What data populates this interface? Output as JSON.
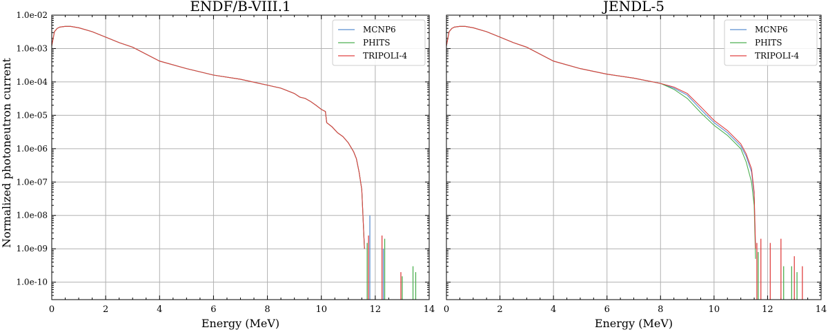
{
  "chart_data": [
    {
      "type": "line",
      "title": "ENDF/B-VIII.1",
      "xlabel": "Energy (MeV)",
      "ylabel": "Normalized photoneutron current",
      "yscale": "log",
      "xlim": [
        0,
        14
      ],
      "ylim": [
        3e-11,
        0.01
      ],
      "grid": true,
      "legend_position": "top-right",
      "xticks": [
        "0",
        "2",
        "4",
        "6",
        "8",
        "10",
        "12",
        "14"
      ],
      "yticks": [
        "1.0e-02",
        "1.0e-03",
        "1.0e-04",
        "1.0e-05",
        "1.0e-06",
        "1.0e-07",
        "1.0e-08",
        "1.0e-09",
        "1.0e-10"
      ],
      "series": [
        {
          "name": "MCNP6",
          "color": "#5b8fd0",
          "x": [
            0.0,
            0.1,
            0.2,
            0.3,
            0.5,
            0.7,
            1.0,
            1.5,
            2.0,
            2.5,
            3.0,
            4.0,
            5.0,
            6.0,
            7.0,
            8.0,
            8.5,
            9.0,
            9.2,
            9.4,
            9.6,
            9.8,
            10.0,
            10.15,
            10.2,
            10.4,
            10.6,
            10.8,
            11.0,
            11.2,
            11.3,
            11.4,
            11.5,
            11.6
          ],
          "y": [
            0.0012,
            0.0032,
            0.004,
            0.0044,
            0.0046,
            0.0046,
            0.0042,
            0.0032,
            0.0022,
            0.0015,
            0.0011,
            0.00042,
            0.00025,
            0.00016,
            0.00012,
            8e-05,
            6.5e-05,
            4.5e-05,
            3.5e-05,
            3.2e-05,
            2.6e-05,
            2e-05,
            1.5e-05,
            1.3e-05,
            6e-06,
            4.5e-06,
            3e-06,
            2.3e-06,
            1.5e-06,
            8e-07,
            5e-07,
            2e-07,
            6e-08,
            1e-09
          ]
        },
        {
          "name": "PHITS",
          "color": "#4caf50",
          "x": [
            0.0,
            0.1,
            0.2,
            0.3,
            0.5,
            0.7,
            1.0,
            1.5,
            2.0,
            2.5,
            3.0,
            4.0,
            5.0,
            6.0,
            7.0,
            8.0,
            8.5,
            9.0,
            9.2,
            9.4,
            9.6,
            9.8,
            10.0,
            10.15,
            10.2,
            10.4,
            10.6,
            10.8,
            11.0,
            11.2,
            11.3,
            11.4,
            11.5,
            11.6
          ],
          "y": [
            0.0012,
            0.0032,
            0.004,
            0.0044,
            0.0046,
            0.0046,
            0.0042,
            0.0032,
            0.0022,
            0.0015,
            0.0011,
            0.00042,
            0.00025,
            0.00016,
            0.00012,
            8e-05,
            6.5e-05,
            4.5e-05,
            3.5e-05,
            3.2e-05,
            2.6e-05,
            2e-05,
            1.5e-05,
            1.3e-05,
            6e-06,
            4.5e-06,
            3e-06,
            2.3e-06,
            1.5e-06,
            8e-07,
            5e-07,
            2e-07,
            6e-08,
            1e-09
          ]
        },
        {
          "name": "TRIPOLI-4",
          "color": "#e04040",
          "x": [
            0.0,
            0.1,
            0.2,
            0.3,
            0.5,
            0.7,
            1.0,
            1.5,
            2.0,
            2.5,
            3.0,
            4.0,
            5.0,
            6.0,
            7.0,
            8.0,
            8.5,
            9.0,
            9.2,
            9.4,
            9.6,
            9.8,
            10.0,
            10.15,
            10.2,
            10.4,
            10.6,
            10.8,
            11.0,
            11.2,
            11.3,
            11.4,
            11.5,
            11.6
          ],
          "y": [
            0.0012,
            0.0032,
            0.004,
            0.0044,
            0.0046,
            0.0046,
            0.0042,
            0.0032,
            0.0022,
            0.0015,
            0.0011,
            0.00042,
            0.00025,
            0.00016,
            0.00012,
            8e-05,
            6.5e-05,
            4.5e-05,
            3.5e-05,
            3.2e-05,
            2.6e-05,
            2e-05,
            1.5e-05,
            1.3e-05,
            6e-06,
            4.5e-06,
            3e-06,
            2.3e-06,
            1.5e-06,
            8e-07,
            5e-07,
            2e-07,
            6e-08,
            1e-09
          ]
        }
      ],
      "tail_peaks": [
        {
          "series": "MCNP6",
          "x": 11.8,
          "y": 1e-08
        },
        {
          "series": "TRIPOLI-4",
          "x": 11.75,
          "y": 2.5e-09
        },
        {
          "series": "PHITS",
          "x": 11.7,
          "y": 1.5e-09
        },
        {
          "series": "TRIPOLI-4",
          "x": 12.25,
          "y": 2.5e-09
        },
        {
          "series": "PHITS",
          "x": 12.35,
          "y": 2e-09
        },
        {
          "series": "MCNP6",
          "x": 12.3,
          "y": 1e-09
        },
        {
          "series": "TRIPOLI-4",
          "x": 12.95,
          "y": 2e-10
        },
        {
          "series": "PHITS",
          "x": 13.0,
          "y": 1.5e-10
        },
        {
          "series": "PHITS",
          "x": 13.4,
          "y": 3e-10
        },
        {
          "series": "PHITS",
          "x": 13.5,
          "y": 2e-10
        }
      ]
    },
    {
      "type": "line",
      "title": "JENDL-5",
      "xlabel": "Energy (MeV)",
      "ylabel": "",
      "yscale": "log",
      "xlim": [
        0,
        14
      ],
      "ylim": [
        3e-11,
        0.01
      ],
      "grid": true,
      "legend_position": "top-right",
      "xticks": [
        "0",
        "2",
        "4",
        "6",
        "8",
        "10",
        "12",
        "14"
      ],
      "yticks": [],
      "series": [
        {
          "name": "MCNP6",
          "color": "#5b8fd0",
          "x": [
            0.0,
            0.1,
            0.2,
            0.3,
            0.5,
            0.7,
            1.0,
            1.5,
            2.0,
            2.5,
            3.0,
            4.0,
            5.0,
            6.0,
            7.0,
            8.0,
            8.5,
            9.0,
            9.5,
            10.0,
            10.5,
            11.0,
            11.2,
            11.4,
            11.5,
            11.55
          ],
          "y": [
            0.0012,
            0.0032,
            0.004,
            0.0044,
            0.0046,
            0.0046,
            0.0042,
            0.0032,
            0.0022,
            0.0015,
            0.0011,
            0.00042,
            0.00025,
            0.00017,
            0.00013,
            9e-05,
            6.5e-05,
            4e-05,
            1.5e-05,
            6e-06,
            3e-06,
            1.2e-06,
            6e-07,
            2e-07,
            4e-08,
            1e-09
          ]
        },
        {
          "name": "PHITS",
          "color": "#4caf50",
          "x": [
            0.0,
            0.1,
            0.2,
            0.3,
            0.5,
            0.7,
            1.0,
            1.5,
            2.0,
            2.5,
            3.0,
            4.0,
            5.0,
            6.0,
            7.0,
            8.0,
            8.5,
            9.0,
            9.5,
            10.0,
            10.5,
            11.0,
            11.2,
            11.4,
            11.5,
            11.55
          ],
          "y": [
            0.0012,
            0.0032,
            0.004,
            0.0044,
            0.0046,
            0.0046,
            0.0042,
            0.0032,
            0.0022,
            0.0015,
            0.0011,
            0.00042,
            0.00025,
            0.00017,
            0.00013,
            9e-05,
            6e-05,
            3.2e-05,
            1.2e-05,
            5e-06,
            2.5e-06,
            1e-06,
            4e-07,
            1e-07,
            2e-08,
            5e-10
          ]
        },
        {
          "name": "TRIPOLI-4",
          "color": "#e04040",
          "x": [
            0.0,
            0.1,
            0.2,
            0.3,
            0.5,
            0.7,
            1.0,
            1.5,
            2.0,
            2.5,
            3.0,
            4.0,
            5.0,
            6.0,
            7.0,
            8.0,
            8.5,
            9.0,
            9.5,
            10.0,
            10.5,
            11.0,
            11.2,
            11.4,
            11.5,
            11.55
          ],
          "y": [
            0.0012,
            0.0032,
            0.004,
            0.0044,
            0.0046,
            0.0046,
            0.0042,
            0.0032,
            0.0022,
            0.0015,
            0.0011,
            0.00042,
            0.00025,
            0.00017,
            0.00013,
            9e-05,
            7e-05,
            4.5e-05,
            1.8e-05,
            7e-06,
            3.5e-06,
            1.4e-06,
            7e-07,
            2.5e-07,
            5e-08,
            1e-09
          ]
        }
      ],
      "tail_peaks": [
        {
          "series": "TRIPOLI-4",
          "x": 11.6,
          "y": 1.5e-09
        },
        {
          "series": "PHITS",
          "x": 11.65,
          "y": 8e-10
        },
        {
          "series": "TRIPOLI-4",
          "x": 11.75,
          "y": 2e-09
        },
        {
          "series": "TRIPOLI-4",
          "x": 12.1,
          "y": 1.5e-09
        },
        {
          "series": "TRIPOLI-4",
          "x": 12.5,
          "y": 2e-09
        },
        {
          "series": "PHITS",
          "x": 12.6,
          "y": 3e-10
        },
        {
          "series": "PHITS",
          "x": 12.9,
          "y": 3e-10
        },
        {
          "series": "TRIPOLI-4",
          "x": 13.0,
          "y": 6e-10
        },
        {
          "series": "PHITS",
          "x": 13.1,
          "y": 2e-10
        },
        {
          "series": "TRIPOLI-4",
          "x": 13.3,
          "y": 3e-10
        }
      ]
    }
  ]
}
